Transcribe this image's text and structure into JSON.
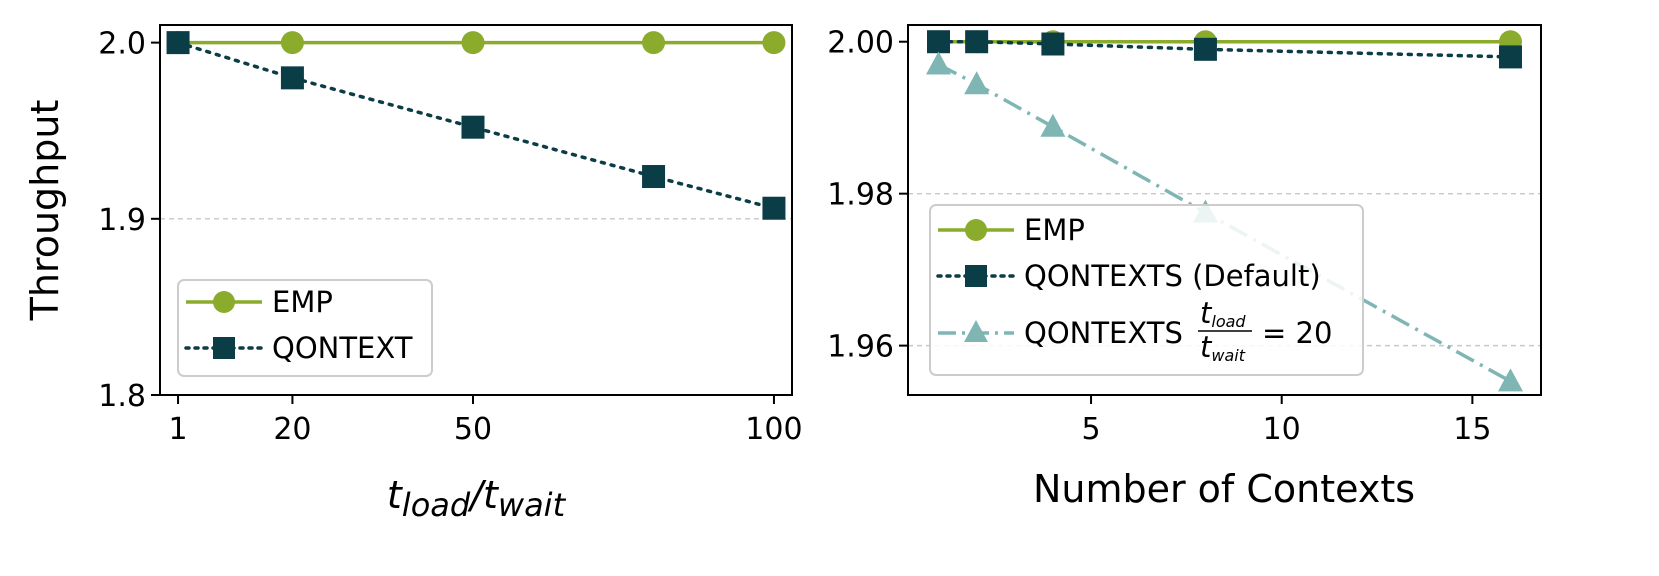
{
  "colors": {
    "emp": "#8aab2b",
    "qontext": "#0b3d47",
    "qontext20": "#7fb6b3",
    "grid": "#c8c8c8"
  },
  "chart_data": [
    {
      "type": "line",
      "ylabel": "Throughput",
      "xlabel_main": "t",
      "xlabel_sub1": "load",
      "xlabel_slash": "/t",
      "xlabel_sub2": "wait",
      "xlim": [
        -2,
        103
      ],
      "ylim": [
        1.8,
        2.01
      ],
      "xticks": [
        1,
        20,
        50,
        100
      ],
      "xtick_labels": [
        "1",
        "20",
        "50",
        "100"
      ],
      "yticks": [
        1.8,
        1.9,
        2.0
      ],
      "ytick_labels": [
        "1.8",
        "1.9",
        "2.0"
      ],
      "grid_y": [
        1.9
      ],
      "legend_position": "lower-left",
      "series": [
        {
          "name": "EMP",
          "key": "emp",
          "marker": "circle",
          "linestyle": "solid",
          "x": [
            1,
            20,
            50,
            80,
            100
          ],
          "y": [
            2.0,
            2.0,
            2.0,
            2.0,
            2.0
          ]
        },
        {
          "name": "QONTEXT",
          "key": "qontext",
          "marker": "square",
          "linestyle": "dotted",
          "x": [
            1,
            20,
            50,
            80,
            100
          ],
          "y": [
            2.0,
            1.98,
            1.952,
            1.924,
            1.906
          ]
        }
      ]
    },
    {
      "type": "line",
      "xlabel": "Number of Contexts",
      "xlim": [
        0.2,
        16.8
      ],
      "ylim": [
        1.9535,
        2.0022
      ],
      "xticks": [
        5,
        10,
        15
      ],
      "xtick_labels": [
        "5",
        "10",
        "15"
      ],
      "yticks": [
        1.96,
        1.98,
        2.0
      ],
      "ytick_labels": [
        "1.96",
        "1.98",
        "2.00"
      ],
      "grid_y": [
        1.96,
        1.98
      ],
      "legend_position": "lower-left",
      "series": [
        {
          "name": "EMP",
          "key": "emp",
          "marker": "circle",
          "linestyle": "solid",
          "x": [
            1,
            2,
            4,
            8,
            16
          ],
          "y": [
            2.0,
            2.0,
            2.0,
            2.0,
            2.0
          ]
        },
        {
          "name": "QONTEXTS (Default)",
          "key": "qontext",
          "marker": "square",
          "linestyle": "dotted",
          "x": [
            1,
            2,
            4,
            8,
            16
          ],
          "y": [
            2.0,
            2.0,
            1.9997,
            1.999,
            1.998
          ]
        },
        {
          "name": "QONTEXTS",
          "name_frac_num": "load",
          "name_frac_den": "wait",
          "name_suffix": "= 20",
          "key": "qontext20",
          "marker": "triangle",
          "linestyle": "dashdot",
          "x": [
            1,
            2,
            4,
            8,
            16
          ],
          "y": [
            1.997,
            1.9944,
            1.9888,
            1.9775,
            1.9553
          ]
        }
      ]
    }
  ]
}
